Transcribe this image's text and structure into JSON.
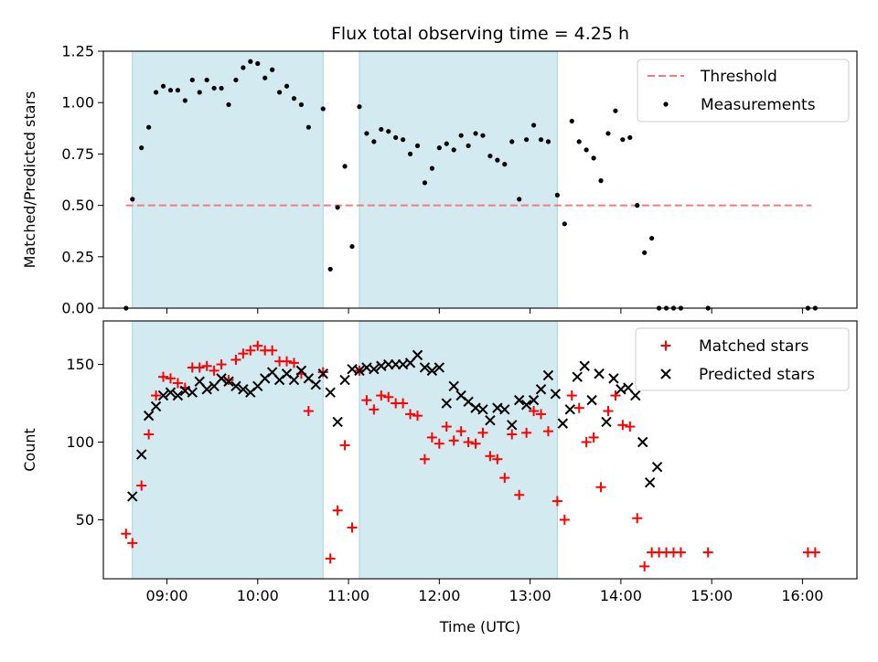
{
  "title": "Flux total observing time = 4.25 h",
  "chart_data": [
    {
      "type": "scatter",
      "ylabel": "Matched/Predicted stars",
      "xlim": [
        8.3,
        16.6
      ],
      "ylim": [
        0,
        1.25
      ],
      "yticks": [
        0.0,
        0.25,
        0.5,
        0.75,
        1.0,
        1.25
      ],
      "ytick_labels": [
        "0.00",
        "0.25",
        "0.50",
        "0.75",
        "1.00",
        "1.25"
      ],
      "legend_position": "top-right",
      "shaded_spans": [
        [
          8.62,
          10.72
        ],
        [
          11.12,
          13.3
        ]
      ],
      "shade_color": "#d3eaf0",
      "threshold": {
        "name": "Threshold",
        "value": 0.5,
        "x_range": [
          8.55,
          16.1
        ],
        "color": "#f07d7d"
      },
      "measurements_label": "Measurements",
      "measurements": [
        [
          8.55,
          0.0
        ],
        [
          8.62,
          0.53
        ],
        [
          8.72,
          0.78
        ],
        [
          8.8,
          0.88
        ],
        [
          8.88,
          1.05
        ],
        [
          8.96,
          1.08
        ],
        [
          9.04,
          1.06
        ],
        [
          9.12,
          1.06
        ],
        [
          9.2,
          1.01
        ],
        [
          9.28,
          1.11
        ],
        [
          9.36,
          1.05
        ],
        [
          9.44,
          1.11
        ],
        [
          9.52,
          1.07
        ],
        [
          9.6,
          1.07
        ],
        [
          9.68,
          0.99
        ],
        [
          9.76,
          1.11
        ],
        [
          9.84,
          1.17
        ],
        [
          9.92,
          1.2
        ],
        [
          10.0,
          1.19
        ],
        [
          10.08,
          1.12
        ],
        [
          10.16,
          1.16
        ],
        [
          10.24,
          1.05
        ],
        [
          10.32,
          1.08
        ],
        [
          10.4,
          1.02
        ],
        [
          10.48,
          0.99
        ],
        [
          10.56,
          0.88
        ],
        [
          10.72,
          0.97
        ],
        [
          10.8,
          0.19
        ],
        [
          10.88,
          0.49
        ],
        [
          10.96,
          0.69
        ],
        [
          11.04,
          0.3
        ],
        [
          11.12,
          0.98
        ],
        [
          11.2,
          0.85
        ],
        [
          11.28,
          0.81
        ],
        [
          11.36,
          0.87
        ],
        [
          11.44,
          0.86
        ],
        [
          11.52,
          0.83
        ],
        [
          11.6,
          0.82
        ],
        [
          11.68,
          0.75
        ],
        [
          11.76,
          0.79
        ],
        [
          11.84,
          0.61
        ],
        [
          11.92,
          0.68
        ],
        [
          12.0,
          0.78
        ],
        [
          12.08,
          0.8
        ],
        [
          12.16,
          0.77
        ],
        [
          12.24,
          0.84
        ],
        [
          12.32,
          0.79
        ],
        [
          12.4,
          0.85
        ],
        [
          12.48,
          0.84
        ],
        [
          12.56,
          0.74
        ],
        [
          12.64,
          0.72
        ],
        [
          12.72,
          0.7
        ],
        [
          12.8,
          0.81
        ],
        [
          12.88,
          0.53
        ],
        [
          12.96,
          0.82
        ],
        [
          13.04,
          0.89
        ],
        [
          13.12,
          0.82
        ],
        [
          13.2,
          0.81
        ],
        [
          13.3,
          0.55
        ],
        [
          13.38,
          0.41
        ],
        [
          13.46,
          0.91
        ],
        [
          13.54,
          0.81
        ],
        [
          13.62,
          0.77
        ],
        [
          13.7,
          0.73
        ],
        [
          13.78,
          0.62
        ],
        [
          13.86,
          0.85
        ],
        [
          13.94,
          0.96
        ],
        [
          14.02,
          0.82
        ],
        [
          14.1,
          0.83
        ],
        [
          14.18,
          0.5
        ],
        [
          14.26,
          0.27
        ],
        [
          14.34,
          0.34
        ],
        [
          14.42,
          0.0
        ],
        [
          14.5,
          0.0
        ],
        [
          14.58,
          0.0
        ],
        [
          14.66,
          0.0
        ],
        [
          14.96,
          0.0
        ],
        [
          16.06,
          0.0
        ],
        [
          16.14,
          0.0
        ]
      ]
    },
    {
      "type": "scatter",
      "xlabel": "Time (UTC)",
      "ylabel": "Count",
      "xlim": [
        8.3,
        16.6
      ],
      "ylim": [
        12,
        178
      ],
      "yticks": [
        50,
        100,
        150
      ],
      "ytick_labels": [
        "50",
        "100",
        "150"
      ],
      "xticks": [
        9,
        10,
        11,
        12,
        13,
        14,
        15,
        16
      ],
      "xtick_labels": [
        "09:00",
        "10:00",
        "11:00",
        "12:00",
        "13:00",
        "14:00",
        "15:00",
        "16:00"
      ],
      "legend_position": "top-right",
      "shaded_spans": [
        [
          8.62,
          10.72
        ],
        [
          11.12,
          13.3
        ]
      ],
      "shade_color": "#d3eaf0",
      "series": [
        {
          "name": "Matched stars",
          "marker": "plus",
          "color": "#ff0000",
          "points": [
            [
              8.55,
              41
            ],
            [
              8.62,
              35
            ],
            [
              8.72,
              72
            ],
            [
              8.8,
              105
            ],
            [
              8.88,
              130
            ],
            [
              8.96,
              142
            ],
            [
              9.04,
              141
            ],
            [
              9.12,
              138
            ],
            [
              9.2,
              135
            ],
            [
              9.28,
              148
            ],
            [
              9.36,
              148
            ],
            [
              9.44,
              149
            ],
            [
              9.52,
              146
            ],
            [
              9.6,
              150
            ],
            [
              9.68,
              140
            ],
            [
              9.76,
              153
            ],
            [
              9.84,
              157
            ],
            [
              9.92,
              159
            ],
            [
              10.0,
              162
            ],
            [
              10.08,
              159
            ],
            [
              10.16,
              159
            ],
            [
              10.24,
              152
            ],
            [
              10.32,
              152
            ],
            [
              10.4,
              151
            ],
            [
              10.48,
              144
            ],
            [
              10.56,
              120
            ],
            [
              10.72,
              145
            ],
            [
              10.8,
              25
            ],
            [
              10.88,
              56
            ],
            [
              10.96,
              98
            ],
            [
              11.04,
              45
            ],
            [
              11.12,
              146
            ],
            [
              11.2,
              127
            ],
            [
              11.28,
              121
            ],
            [
              11.36,
              130
            ],
            [
              11.44,
              129
            ],
            [
              11.52,
              125
            ],
            [
              11.6,
              125
            ],
            [
              11.68,
              118
            ],
            [
              11.76,
              117
            ],
            [
              11.84,
              89
            ],
            [
              11.92,
              103
            ],
            [
              12.0,
              99
            ],
            [
              12.08,
              110
            ],
            [
              12.16,
              101
            ],
            [
              12.24,
              107
            ],
            [
              12.32,
              100
            ],
            [
              12.4,
              99
            ],
            [
              12.48,
              106
            ],
            [
              12.56,
              91
            ],
            [
              12.64,
              89
            ],
            [
              12.72,
              77
            ],
            [
              12.8,
              105
            ],
            [
              12.88,
              66
            ],
            [
              12.96,
              106
            ],
            [
              13.04,
              120
            ],
            [
              13.12,
              118
            ],
            [
              13.2,
              107
            ],
            [
              13.3,
              62
            ],
            [
              13.38,
              50
            ],
            [
              13.46,
              130
            ],
            [
              13.54,
              122
            ],
            [
              13.62,
              100
            ],
            [
              13.7,
              103
            ],
            [
              13.78,
              71
            ],
            [
              13.86,
              120
            ],
            [
              13.94,
              130
            ],
            [
              14.02,
              111
            ],
            [
              14.1,
              110
            ],
            [
              14.18,
              51
            ],
            [
              14.26,
              20
            ],
            [
              14.34,
              29
            ],
            [
              14.42,
              29
            ],
            [
              14.5,
              29
            ],
            [
              14.58,
              29
            ],
            [
              14.66,
              29
            ],
            [
              14.96,
              29
            ],
            [
              16.06,
              29
            ],
            [
              16.14,
              29
            ]
          ]
        },
        {
          "name": "Predicted stars",
          "marker": "x",
          "color": "#000000",
          "points": [
            [
              8.62,
              65
            ],
            [
              8.72,
              92
            ],
            [
              8.8,
              117
            ],
            [
              8.88,
              123
            ],
            [
              8.96,
              130
            ],
            [
              9.04,
              132
            ],
            [
              9.12,
              130
            ],
            [
              9.2,
              133
            ],
            [
              9.28,
              132
            ],
            [
              9.36,
              139
            ],
            [
              9.44,
              134
            ],
            [
              9.52,
              136
            ],
            [
              9.6,
              141
            ],
            [
              9.68,
              139
            ],
            [
              9.76,
              136
            ],
            [
              9.84,
              134
            ],
            [
              9.92,
              132
            ],
            [
              10.0,
              136
            ],
            [
              10.08,
              141
            ],
            [
              10.16,
              145
            ],
            [
              10.24,
              140
            ],
            [
              10.32,
              144
            ],
            [
              10.4,
              140
            ],
            [
              10.48,
              146
            ],
            [
              10.56,
              141
            ],
            [
              10.64,
              137
            ],
            [
              10.72,
              144
            ],
            [
              10.8,
              132
            ],
            [
              10.88,
              113
            ],
            [
              10.96,
              140
            ],
            [
              11.04,
              147
            ],
            [
              11.12,
              146
            ],
            [
              11.2,
              148
            ],
            [
              11.28,
              147
            ],
            [
              11.36,
              149
            ],
            [
              11.44,
              150
            ],
            [
              11.52,
              150
            ],
            [
              11.6,
              150
            ],
            [
              11.68,
              151
            ],
            [
              11.76,
              156
            ],
            [
              11.84,
              148
            ],
            [
              11.92,
              146
            ],
            [
              12.0,
              148
            ],
            [
              12.08,
              125
            ],
            [
              12.16,
              136
            ],
            [
              12.24,
              130
            ],
            [
              12.32,
              126
            ],
            [
              12.4,
              122
            ],
            [
              12.48,
              121
            ],
            [
              12.56,
              114
            ],
            [
              12.64,
              122
            ],
            [
              12.72,
              121
            ],
            [
              12.8,
              111
            ],
            [
              12.88,
              127
            ],
            [
              12.96,
              124
            ],
            [
              13.04,
              127
            ],
            [
              13.12,
              134
            ],
            [
              13.2,
              143
            ],
            [
              13.28,
              131
            ],
            [
              13.36,
              112
            ],
            [
              13.44,
              121
            ],
            [
              13.52,
              142
            ],
            [
              13.6,
              149
            ],
            [
              13.68,
              127
            ],
            [
              13.76,
              144
            ],
            [
              13.84,
              113
            ],
            [
              13.92,
              141
            ],
            [
              14.0,
              134
            ],
            [
              14.08,
              135
            ],
            [
              14.16,
              130
            ],
            [
              14.24,
              100
            ],
            [
              14.32,
              74
            ],
            [
              14.4,
              84
            ]
          ]
        }
      ]
    }
  ]
}
